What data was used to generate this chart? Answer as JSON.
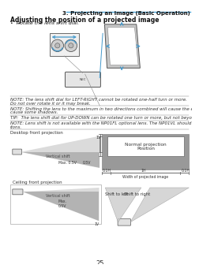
{
  "page_title": "3. Projecting an Image (Basic Operation)",
  "section_title": "Adjusting the position of a projected image",
  "bullet": "•  Rotate the lens shift dial.",
  "note1": "NOTE: The lens shift dial for LEFT-RIGHT cannot be rotated one-half turn or more.",
  "note1b": "Do not over rotate it or it may break.",
  "note2": "NOTE: Shifting the lens to the maximum in two directions combined will cause the edges of the image to become dark or will",
  "note2b": "cause some shadows.",
  "tip": "TIP:  The lens shift dial for UP-DOWN can be rotated one turn or more, but not beyond the adjustable range defined below.",
  "note3": "NOTE: Lens shift is not available with the NP01FL optional lens. The NP01VL should be used only for “zero degree” applica-",
  "note3b": "tions.",
  "desktop_label": "Desktop front projection",
  "ceiling_label": "Ceiling front projection",
  "vertical_shift": "Vertical shift",
  "normal_projection": "Normal projection\nPosition",
  "max_label": "Max. 0.5V",
  "v05_label": "0.5V",
  "1v_label": "1V",
  "shift_left": "Shift to left",
  "shift_right": "Shift to right",
  "width_label": "Width of projected image",
  "h01_label": "0.1H",
  "1h_label": "1H",
  "page_number": "25",
  "bg_color": "#ffffff",
  "title_line_color": "#4aa3d4",
  "blue_arrow": "#4499cc",
  "gray1": "#aaaaaa",
  "gray2": "#888888",
  "gray3": "#555555",
  "gray_beam": "#cccccc",
  "gray_dark": "#777777"
}
